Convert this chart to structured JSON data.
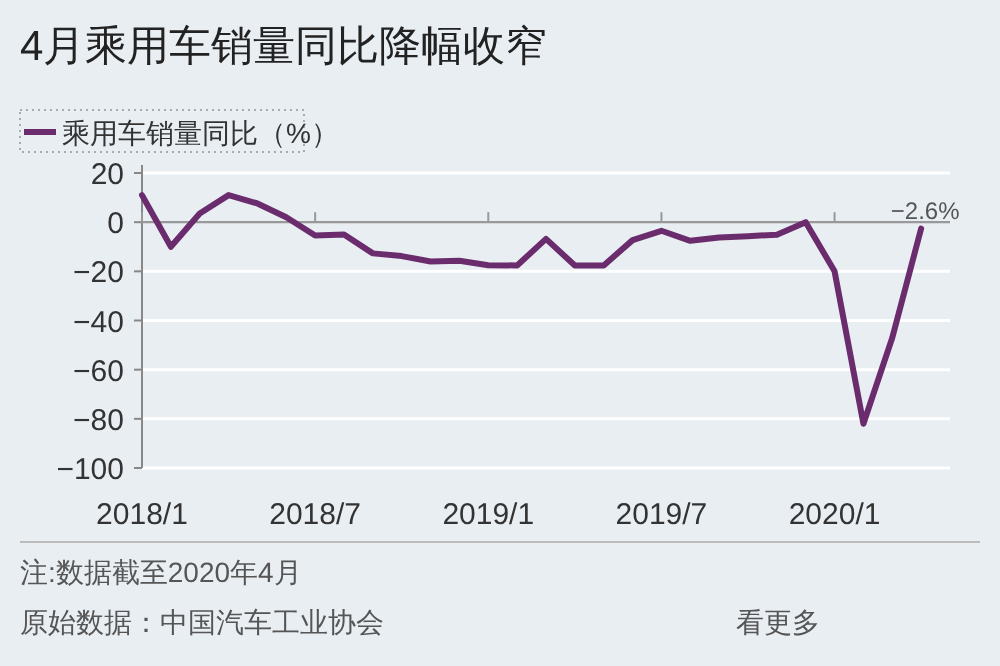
{
  "chart_data": {
    "type": "line",
    "title": "4月乘用车销量同比降幅收窄",
    "x": [
      "2018-01",
      "2018-02",
      "2018-03",
      "2018-04",
      "2018-05",
      "2018-06",
      "2018-07",
      "2018-08",
      "2018-09",
      "2018-10",
      "2018-11",
      "2018-12",
      "2019-01",
      "2019-02",
      "2019-03",
      "2019-04",
      "2019-05",
      "2019-06",
      "2019-07",
      "2019-08",
      "2019-09",
      "2019-10",
      "2019-11",
      "2019-12",
      "2020-01",
      "2020-02",
      "2020-03",
      "2020-04"
    ],
    "series": [
      {
        "name": "乘用车销量同比（%）",
        "color": "#6b2c6e",
        "values": [
          11,
          -10,
          3.5,
          11,
          7.6,
          2,
          -5.4,
          -5,
          -12.7,
          -13.8,
          -16,
          -15.7,
          -17.5,
          -17.6,
          -6.8,
          -17.6,
          -17.6,
          -7.3,
          -3.5,
          -7.6,
          -6.2,
          -5.7,
          -5.1,
          0,
          -20,
          -82,
          -47,
          -2.6
        ]
      }
    ],
    "xlim": [
      "2018-01",
      "2020-05"
    ],
    "xticks": [
      {
        "value": "2018-01",
        "label": "2018/1"
      },
      {
        "value": "2018-07",
        "label": "2018/7"
      },
      {
        "value": "2019-01",
        "label": "2019/1"
      },
      {
        "value": "2019-07",
        "label": "2019/7"
      },
      {
        "value": "2020-01",
        "label": "2020/1"
      }
    ],
    "ylim": [
      -100,
      20
    ],
    "yticks": [
      {
        "value": -100,
        "label": "−100"
      },
      {
        "value": -80,
        "label": "−80"
      },
      {
        "value": -60,
        "label": "−60"
      },
      {
        "value": -40,
        "label": "−40"
      },
      {
        "value": -20,
        "label": "−20"
      },
      0,
      20
    ],
    "grid": "y",
    "legend": "top left",
    "marker": "none",
    "line_style": "solid",
    "annotations": [
      {
        "text": "−2.6%",
        "x": "2020-04",
        "y": -2.6
      },
      "注:数据截至2020年4月",
      "原始数据：中国汽车工业协会",
      "看更多"
    ]
  }
}
